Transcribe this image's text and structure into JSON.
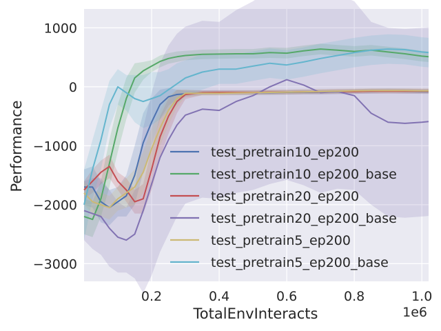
{
  "chart_data": {
    "type": "line",
    "title": "",
    "xlabel": "TotalEnvInteracts",
    "ylabel": "Performance",
    "x_offset_text": "1e6",
    "xlim": [
      0.0,
      1.02
    ],
    "ylim": [
      -3300,
      1320
    ],
    "x_ticks": [
      0.2,
      0.4,
      0.6,
      0.8,
      1.0
    ],
    "x_tick_labels": [
      "0.2",
      "0.4",
      "0.6",
      "0.8",
      "1.0"
    ],
    "y_ticks": [
      1000,
      0,
      -1000,
      -2000,
      -3000
    ],
    "y_tick_labels": [
      "1000",
      "0",
      "−1000",
      "−2000",
      "−3000"
    ],
    "grid": true,
    "legend_position": "lower-right",
    "x": [
      0.0,
      0.025,
      0.05,
      0.075,
      0.1,
      0.125,
      0.15,
      0.175,
      0.2,
      0.225,
      0.25,
      0.275,
      0.3,
      0.35,
      0.4,
      0.45,
      0.5,
      0.55,
      0.6,
      0.65,
      0.7,
      0.75,
      0.8,
      0.85,
      0.9,
      0.95,
      1.0,
      1.02
    ],
    "series": [
      {
        "name": "test_pretrain10_ep200",
        "color": "#4c72b0",
        "values": [
          -1700,
          -1700,
          -1950,
          -2050,
          -1950,
          -1850,
          -1500,
          -950,
          -600,
          -300,
          -170,
          -130,
          -120,
          -100,
          -100,
          -100,
          -100,
          -100,
          -95,
          -90,
          -90,
          -85,
          -80,
          -75,
          -70,
          -75,
          -80,
          -80
        ],
        "band": [
          300,
          350,
          350,
          300,
          250,
          350,
          500,
          500,
          400,
          250,
          150,
          80,
          50,
          40,
          40,
          40,
          40,
          40,
          40,
          40,
          40,
          40,
          40,
          40,
          40,
          40,
          40,
          40
        ]
      },
      {
        "name": "test_pretrain10_ep200_base",
        "color": "#55a868",
        "values": [
          -2200,
          -2250,
          -1900,
          -1300,
          -700,
          -200,
          150,
          270,
          350,
          430,
          480,
          510,
          530,
          550,
          555,
          560,
          560,
          580,
          570,
          610,
          640,
          620,
          600,
          620,
          590,
          560,
          520,
          510
        ],
        "band": [
          300,
          300,
          300,
          400,
          400,
          350,
          250,
          150,
          100,
          100,
          90,
          90,
          80,
          80,
          80,
          80,
          80,
          90,
          90,
          90,
          90,
          90,
          90,
          90,
          90,
          90,
          90,
          90
        ]
      },
      {
        "name": "test_pretrain20_ep200",
        "color": "#c44e52",
        "values": [
          -1750,
          -1600,
          -1450,
          -1350,
          -1600,
          -1750,
          -1950,
          -1900,
          -1400,
          -850,
          -500,
          -250,
          -130,
          -100,
          -95,
          -95,
          -95,
          -90,
          -90,
          -85,
          -85,
          -80,
          -80,
          -75,
          -75,
          -75,
          -75,
          -75
        ],
        "band": [
          150,
          200,
          200,
          200,
          150,
          200,
          200,
          250,
          350,
          350,
          300,
          200,
          80,
          40,
          40,
          40,
          40,
          40,
          40,
          40,
          40,
          40,
          40,
          40,
          40,
          40,
          40,
          40
        ]
      },
      {
        "name": "test_pretrain20_ep200_base",
        "color": "#8172b2",
        "values": [
          -2100,
          -2150,
          -2200,
          -2400,
          -2550,
          -2600,
          -2500,
          -2100,
          -1650,
          -1200,
          -900,
          -650,
          -480,
          -380,
          -400,
          -250,
          -150,
          0,
          120,
          30,
          -100,
          -80,
          -150,
          -450,
          -600,
          -620,
          -600,
          -590
        ],
        "band": [
          500,
          600,
          650,
          650,
          600,
          550,
          750,
          1400,
          1550,
          1600,
          1600,
          1550,
          1500,
          1500,
          1500,
          1550,
          1600,
          1650,
          1700,
          1700,
          1700,
          1650,
          1600,
          1550,
          1600,
          1600,
          1600,
          1600
        ]
      },
      {
        "name": "test_pretrain5_ep200",
        "color": "#ccb974",
        "values": [
          -1800,
          -1950,
          -2000,
          -2050,
          -1900,
          -1800,
          -1700,
          -1450,
          -1050,
          -700,
          -400,
          -200,
          -110,
          -110,
          -110,
          -105,
          -100,
          -95,
          -90,
          -85,
          -80,
          -75,
          -70,
          -65,
          -65,
          -65,
          -70,
          -70
        ],
        "band": [
          200,
          200,
          200,
          200,
          200,
          250,
          300,
          350,
          350,
          300,
          250,
          150,
          60,
          40,
          40,
          40,
          40,
          40,
          40,
          40,
          40,
          40,
          40,
          40,
          40,
          40,
          40,
          40
        ]
      },
      {
        "name": "test_pretrain5_ep200_base",
        "color": "#64b5cd",
        "values": [
          -2000,
          -1400,
          -900,
          -300,
          0,
          -100,
          -200,
          -250,
          -200,
          -150,
          -50,
          50,
          150,
          250,
          300,
          300,
          350,
          400,
          370,
          420,
          480,
          530,
          580,
          620,
          640,
          630,
          590,
          580
        ],
        "band": [
          600,
          500,
          500,
          400,
          300,
          300,
          400,
          450,
          450,
          400,
          350,
          350,
          300,
          300,
          250,
          250,
          250,
          250,
          250,
          250,
          250,
          250,
          250,
          250,
          250,
          250,
          250,
          250
        ]
      }
    ]
  }
}
